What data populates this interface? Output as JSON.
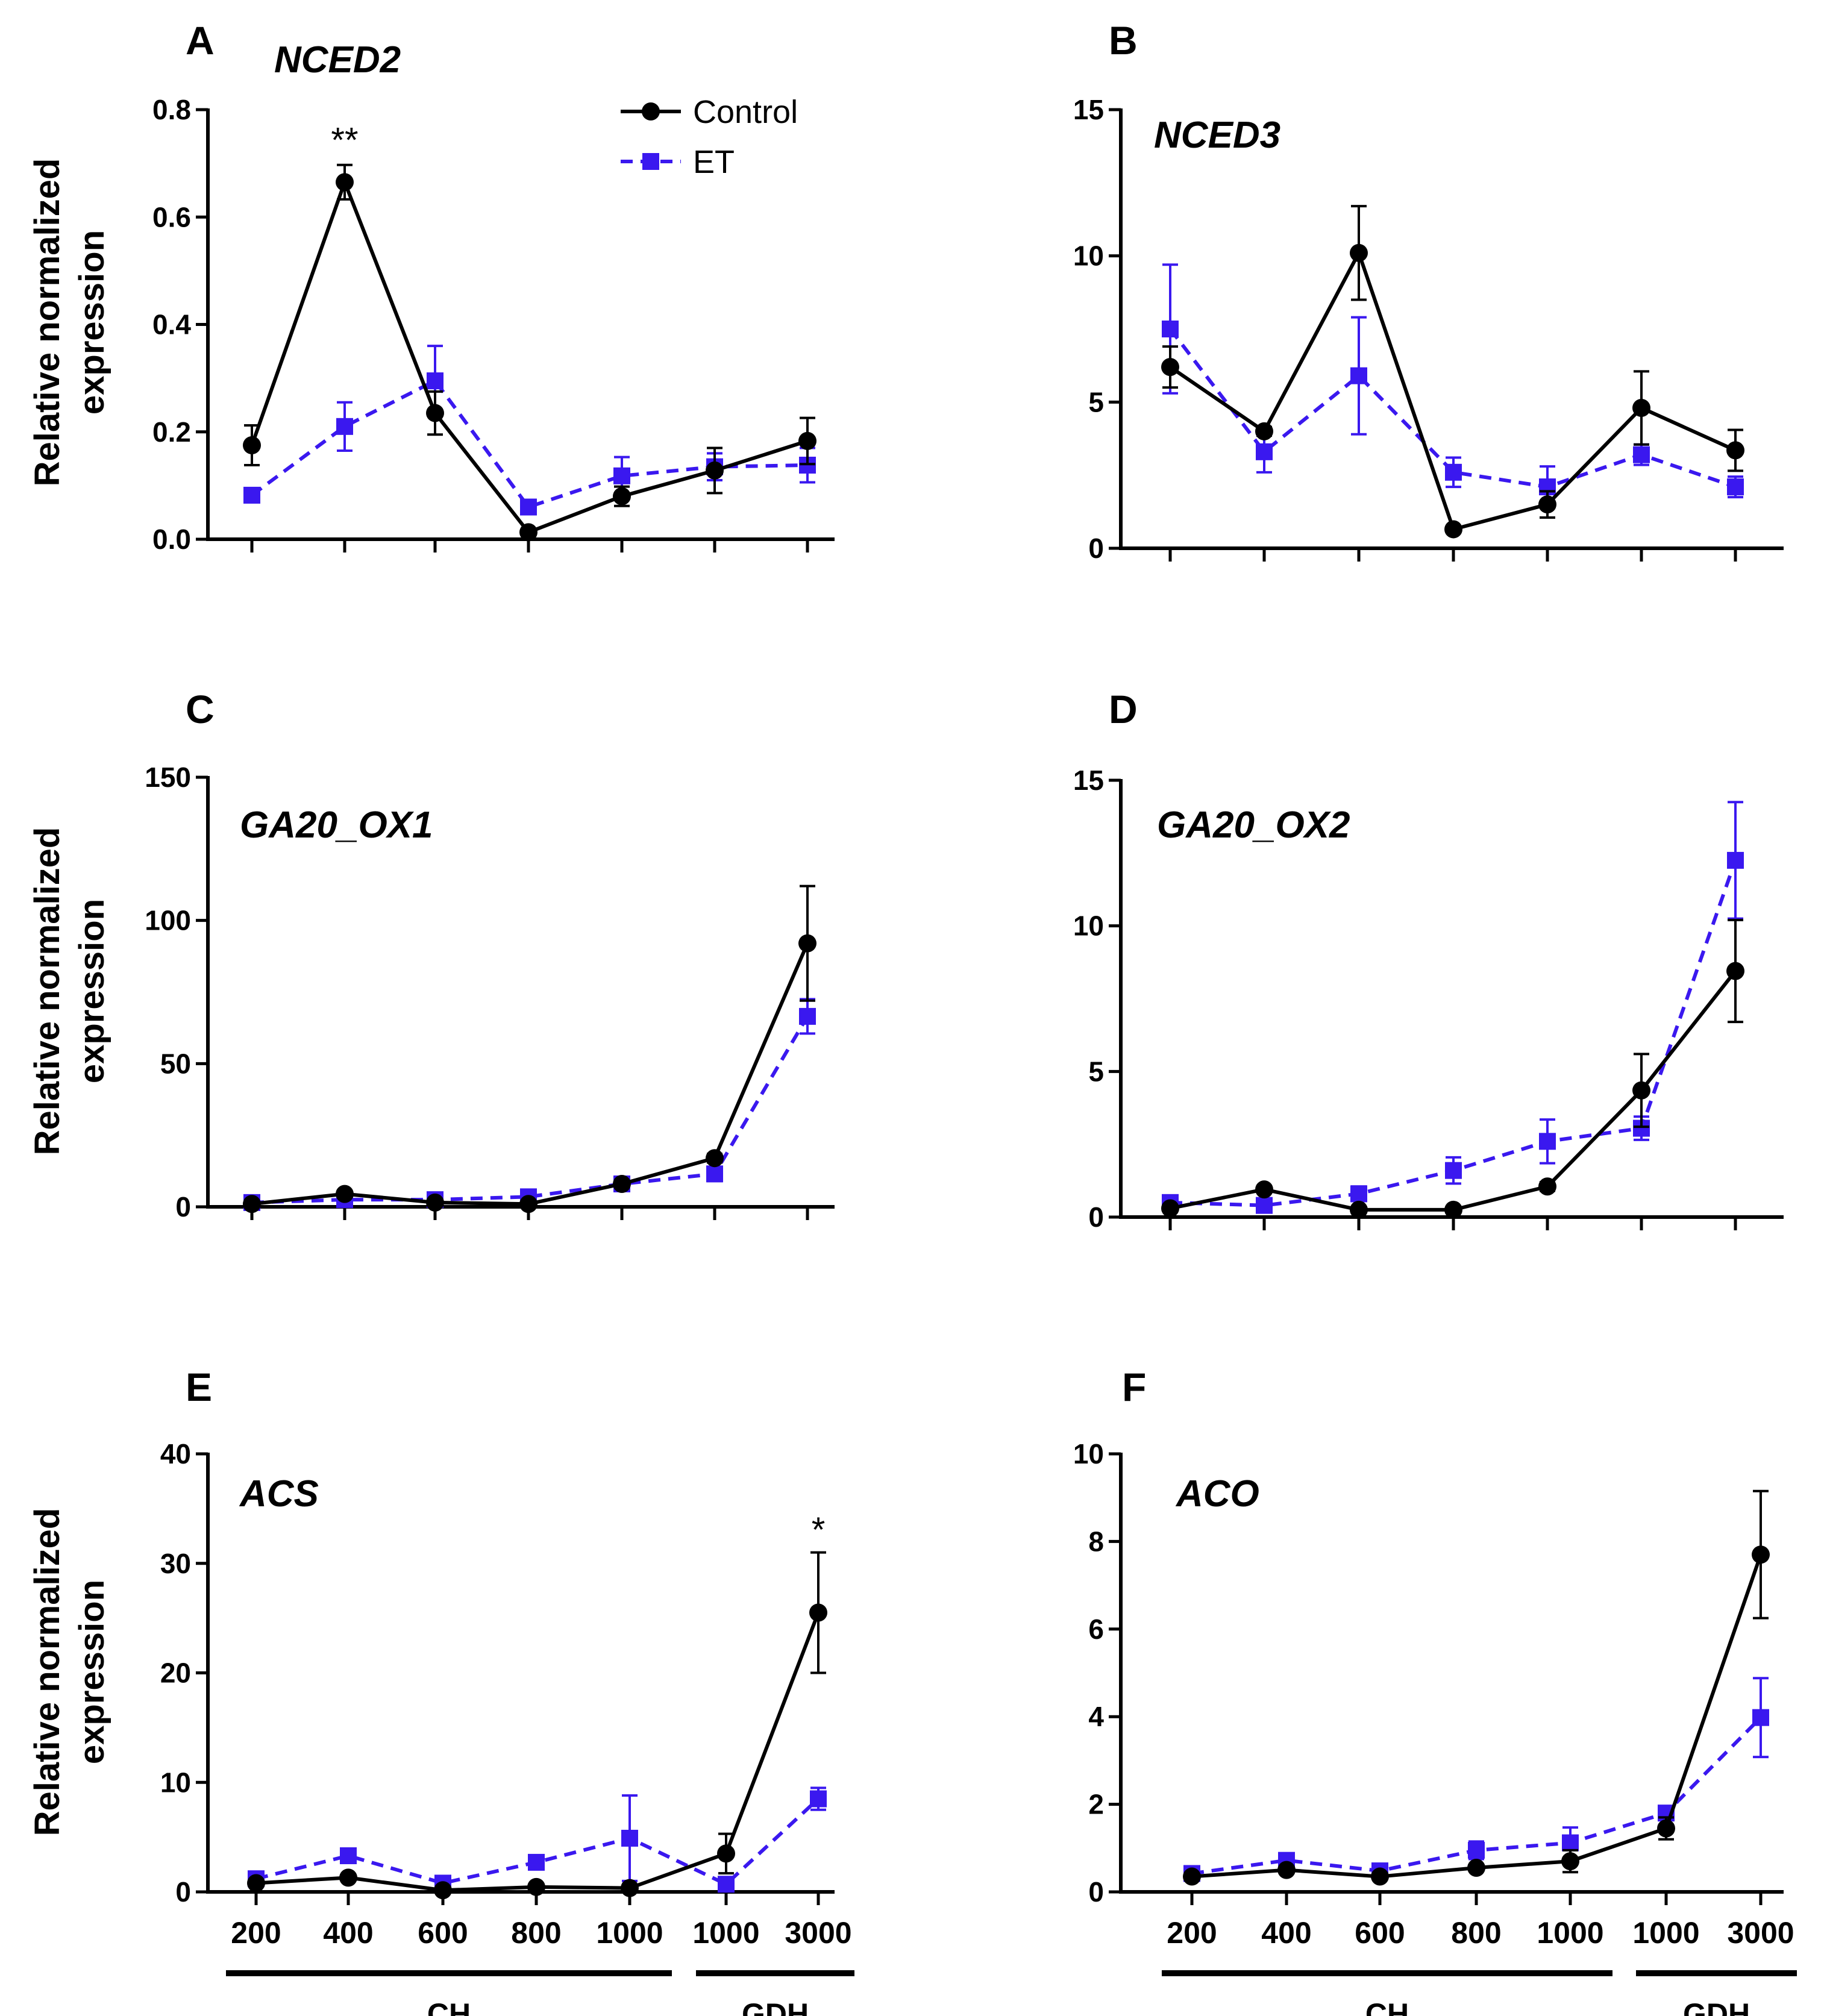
{
  "colors": {
    "control": "#000000",
    "et": "#3a18ef",
    "axis": "#000000"
  },
  "legend": {
    "control": {
      "label": "Control",
      "marker": "circle-icon",
      "line": "solid"
    },
    "et": {
      "label": "ET",
      "marker": "square-icon",
      "line": "dashed"
    }
  },
  "x_axis": {
    "tick_labels": [
      "200",
      "400",
      "600",
      "800",
      "1000",
      "1000",
      "3000"
    ],
    "groups": [
      {
        "label": "CH",
        "from_index": 0,
        "to_index": 4
      },
      {
        "label": "GDH",
        "from_index": 5,
        "to_index": 6
      }
    ]
  },
  "y_label_line1": "Relative normalized",
  "y_label_line2": "expression",
  "chart_data": [
    {
      "type": "line",
      "panel": "A",
      "title": "NCED2",
      "ylabel": "Relative normalized expression",
      "ylim": [
        0,
        0.8
      ],
      "yticks": [
        "0.0",
        "0.2",
        "0.4",
        "0.6",
        "0.8"
      ],
      "ytick_values": [
        0,
        0.2,
        0.4,
        0.6,
        0.8
      ],
      "series": [
        {
          "name": "Control",
          "values": [
            0.175,
            0.665,
            0.235,
            0.013,
            0.08,
            0.128,
            0.183
          ],
          "errors": [
            0.037,
            0.032,
            0.04,
            0.006,
            0.018,
            0.042,
            0.043
          ]
        },
        {
          "name": "ET",
          "values": [
            0.082,
            0.21,
            0.295,
            0.06,
            0.118,
            0.135,
            0.138
          ],
          "errors": [
            0.006,
            0.045,
            0.065,
            0.006,
            0.035,
            0.025,
            0.032
          ]
        }
      ],
      "annotations": [
        {
          "text": "**",
          "index": 1,
          "value": 0.705
        }
      ]
    },
    {
      "type": "line",
      "panel": "B",
      "title": "NCED3",
      "ylabel": "",
      "ylim": [
        0,
        15
      ],
      "yticks": [
        "0",
        "5",
        "10",
        "15"
      ],
      "ytick_values": [
        0,
        5,
        10,
        15
      ],
      "series": [
        {
          "name": "Control",
          "values": [
            6.2,
            4.0,
            10.1,
            0.65,
            1.5,
            4.8,
            3.35
          ],
          "errors": [
            0.7,
            0.15,
            1.6,
            0.1,
            0.45,
            1.25,
            0.7
          ]
        },
        {
          "name": "ET",
          "values": [
            7.5,
            3.3,
            5.9,
            2.6,
            2.1,
            3.2,
            2.1
          ],
          "errors": [
            2.2,
            0.7,
            2.0,
            0.5,
            0.7,
            0.35,
            0.35
          ]
        }
      ],
      "annotations": []
    },
    {
      "type": "line",
      "panel": "C",
      "title": "GA20_OX1",
      "ylabel": "Relative normalized expression",
      "ylim": [
        0,
        150
      ],
      "yticks": [
        "0",
        "50",
        "100",
        "150"
      ],
      "ytick_values": [
        0,
        50,
        100,
        150
      ],
      "series": [
        {
          "name": "Control",
          "values": [
            1.0,
            4.5,
            1.5,
            1.0,
            8.0,
            17.0,
            92.0
          ],
          "errors": [
            0.3,
            0.6,
            0.4,
            0.3,
            1.0,
            1.5,
            20.0
          ]
        },
        {
          "name": "ET",
          "values": [
            1.5,
            2.5,
            2.5,
            3.5,
            8.0,
            11.5,
            66.5
          ],
          "errors": [
            0.5,
            0.6,
            0.6,
            0.8,
            1.2,
            2.5,
            6.0
          ]
        }
      ],
      "annotations": []
    },
    {
      "type": "line",
      "panel": "D",
      "title": "GA20_OX2",
      "ylabel": "",
      "ylim": [
        0,
        15
      ],
      "yticks": [
        "0",
        "5",
        "10",
        "15"
      ],
      "ytick_values": [
        0,
        5,
        10,
        15
      ],
      "series": [
        {
          "name": "Control",
          "values": [
            0.3,
            0.95,
            0.25,
            0.25,
            1.05,
            4.35,
            8.45
          ],
          "errors": [
            0.05,
            0.1,
            0.05,
            0.05,
            0.15,
            1.25,
            1.75
          ]
        },
        {
          "name": "ET",
          "values": [
            0.5,
            0.4,
            0.8,
            1.6,
            2.6,
            3.05,
            12.25
          ],
          "errors": [
            0.1,
            0.1,
            0.25,
            0.45,
            0.75,
            0.4,
            2.0
          ]
        }
      ],
      "annotations": []
    },
    {
      "type": "line",
      "panel": "E",
      "title": "ACS",
      "ylabel": "Relative normalized expression",
      "ylim": [
        0,
        40
      ],
      "yticks": [
        "0",
        "10",
        "20",
        "30",
        "40"
      ],
      "ytick_values": [
        0,
        10,
        20,
        30,
        40
      ],
      "series": [
        {
          "name": "Control",
          "values": [
            0.8,
            1.3,
            0.15,
            0.45,
            0.35,
            3.5,
            25.5
          ],
          "errors": [
            0.15,
            0.25,
            0.1,
            0.1,
            0.1,
            1.8,
            5.5
          ]
        },
        {
          "name": "ET",
          "values": [
            1.2,
            3.3,
            0.8,
            2.7,
            4.9,
            0.7,
            8.5
          ],
          "errors": [
            0.3,
            0.4,
            0.4,
            0.4,
            3.9,
            0.2,
            1.0
          ]
        }
      ],
      "annotations": [
        {
          "text": "*",
          "index": 6,
          "value": 31.2
        }
      ]
    },
    {
      "type": "line",
      "panel": "F",
      "title": "ACO",
      "ylabel": "",
      "ylim": [
        0,
        10
      ],
      "yticks": [
        "0",
        "2",
        "4",
        "6",
        "8",
        "10"
      ],
      "ytick_values": [
        0,
        2,
        4,
        6,
        8,
        10
      ],
      "series": [
        {
          "name": "Control",
          "values": [
            0.35,
            0.5,
            0.35,
            0.55,
            0.7,
            1.45,
            7.7
          ],
          "errors": [
            0.05,
            0.05,
            0.05,
            0.05,
            0.25,
            0.25,
            1.45
          ]
        },
        {
          "name": "ET",
          "values": [
            0.42,
            0.72,
            0.48,
            0.95,
            1.12,
            1.8,
            3.98
          ],
          "errors": [
            0.05,
            0.1,
            0.1,
            0.2,
            0.35,
            0.15,
            0.9
          ]
        }
      ],
      "annotations": []
    }
  ]
}
